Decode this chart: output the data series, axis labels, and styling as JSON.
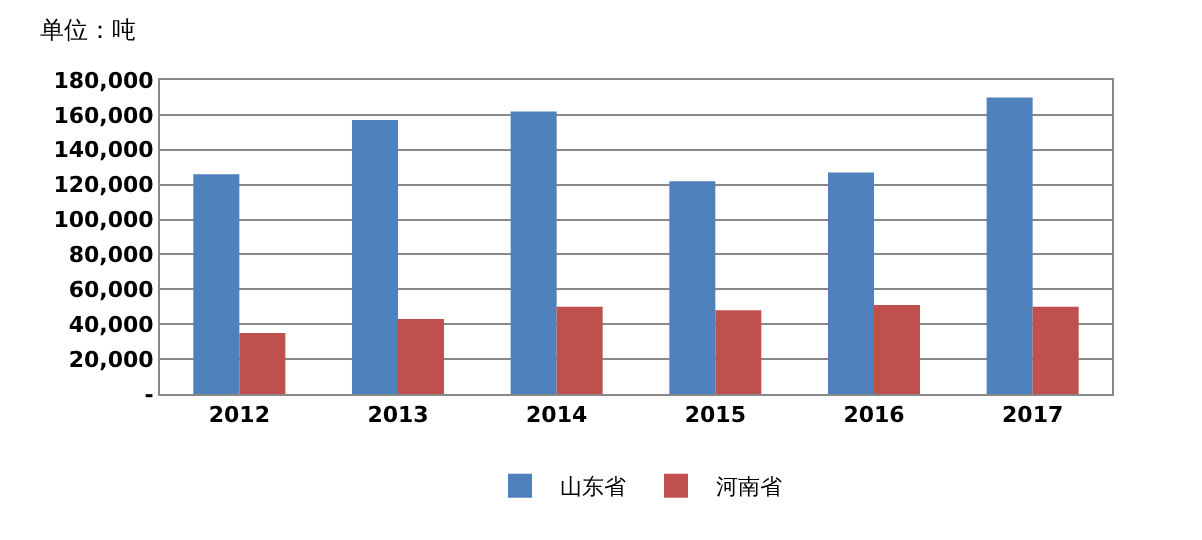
{
  "chart_data": {
    "type": "bar",
    "ylabel": "单位：吨",
    "categories": [
      "2012",
      "2013",
      "2014",
      "2015",
      "2016",
      "2017"
    ],
    "series": [
      {
        "name": "山东省",
        "color": "#4f81bd",
        "values": [
          126000,
          157000,
          162000,
          122000,
          127000,
          170000
        ]
      },
      {
        "name": "河南省",
        "color": "#c0504d",
        "values": [
          35000,
          43000,
          50000,
          48000,
          51000,
          50000
        ]
      }
    ],
    "ylim": [
      0,
      180000
    ],
    "yticks": [
      {
        "value": 0,
        "label": "-"
      },
      {
        "value": 20000,
        "label": "20,000"
      },
      {
        "value": 40000,
        "label": "40,000"
      },
      {
        "value": 60000,
        "label": "60,000"
      },
      {
        "value": 80000,
        "label": "80,000"
      },
      {
        "value": 100000,
        "label": "100,000"
      },
      {
        "value": 120000,
        "label": "120,000"
      },
      {
        "value": 140000,
        "label": "140,000"
      },
      {
        "value": 160000,
        "label": "160,000"
      },
      {
        "value": 180000,
        "label": "180,000"
      }
    ],
    "grid": "y",
    "legend": "bottom"
  }
}
